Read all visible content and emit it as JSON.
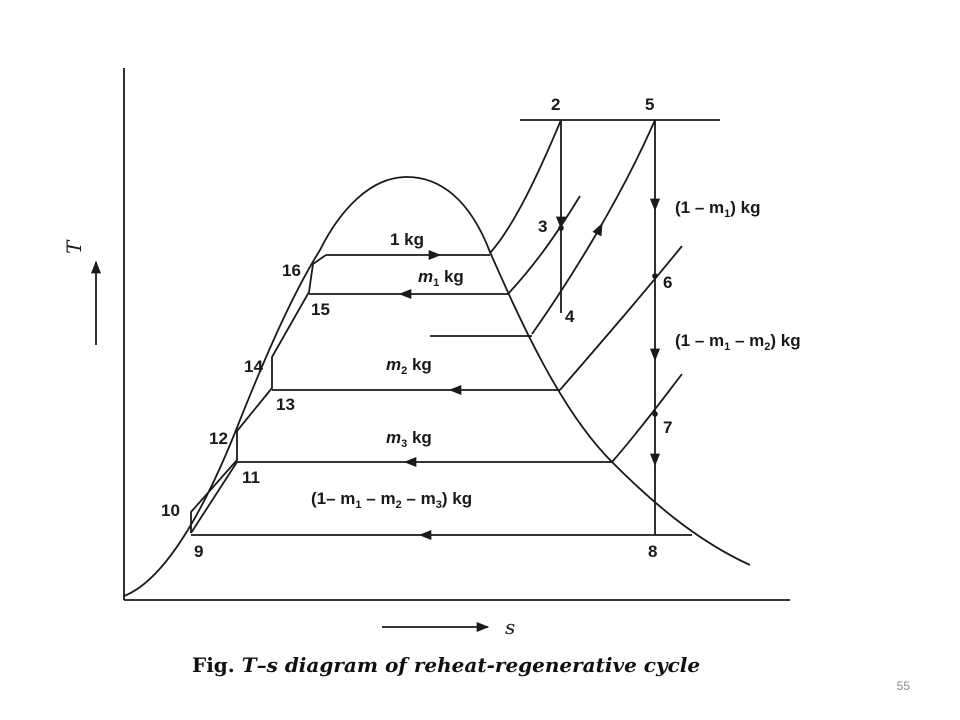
{
  "diagram": {
    "axis": {
      "y_label": "T",
      "x_label": "s"
    },
    "state_points": [
      "2",
      "5",
      "3",
      "4",
      "6",
      "7",
      "8",
      "9",
      "10",
      "11",
      "12",
      "13",
      "14",
      "15",
      "16"
    ],
    "flows": {
      "f1_a": "1 kg",
      "f2_m": "m",
      "f2_sub": "1",
      "f2_rest": " kg",
      "f3_m": "m",
      "f3_sub": "2",
      "f3_rest": " kg",
      "f4_m": "m",
      "f4_sub": "3",
      "f4_rest": " kg",
      "f5_a": "(1 – m",
      "f5_sub1": "1",
      "f5_b": ") kg",
      "f6_a": "(1 – m",
      "f6_sub1": "1",
      "f6_b": " – m",
      "f6_sub2": "2",
      "f6_c": ") kg",
      "f7_a": "(1– m",
      "f7_sub1": "1",
      "f7_b": " – m",
      "f7_sub2": "2",
      "f7_c": " – m",
      "f7_sub3": "3",
      "f7_d": ") kg"
    },
    "caption": {
      "prefix": "Fig.",
      "text": "T–s diagram of reheat-regenerative cycle"
    }
  },
  "slide": {
    "page_number": "55"
  }
}
